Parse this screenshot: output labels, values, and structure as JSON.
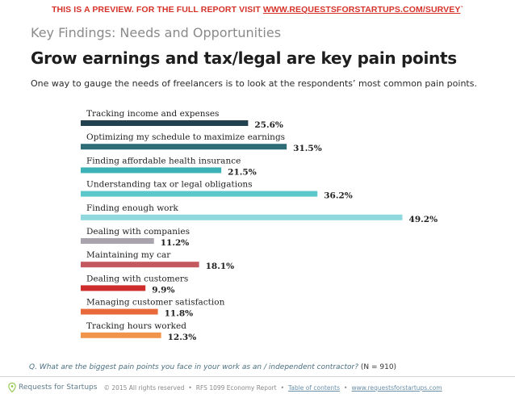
{
  "banner": {
    "prefix": "THIS IS A PREVIEW. FOR THE FULL REPORT VISIT ",
    "link": "WWW.REQUESTSFORSTARTUPS.COM/SURVEY",
    "suffix": "`"
  },
  "header": {
    "subtitle": "Key Findings: Needs and Opportunities",
    "title": "Grow earnings and tax/legal are key pain points",
    "intro": "One way to gauge the needs of freelancers is to look at the respondents’ most common pain points."
  },
  "chart_data": {
    "type": "bar",
    "orientation": "horizontal",
    "categories": [
      "Tracking income and expenses",
      "Optimizing my schedule to maximize earnings",
      "Finding affordable health insurance",
      "Understanding tax or legal obligations",
      "Finding enough work",
      "Dealing with companies",
      "Maintaining my car",
      "Dealing with customers",
      "Managing customer satisfaction",
      "Tracking hours worked"
    ],
    "values": [
      25.6,
      31.5,
      21.5,
      36.2,
      49.2,
      11.2,
      18.1,
      9.9,
      11.8,
      12.3
    ],
    "value_labels": [
      "25.6%",
      "31.5%",
      "21.5%",
      "36.2%",
      "49.2%",
      "11.2%",
      "18.1%",
      "9.9%",
      "11.8%",
      "12.3%"
    ],
    "colors": [
      "#22424f",
      "#2e6c78",
      "#3cb2b6",
      "#5ac7ca",
      "#8fd8dd",
      "#a8a3ad",
      "#c3585f",
      "#cf2d2b",
      "#e86a3a",
      "#f0944c"
    ],
    "unit": "%",
    "xlim": [
      0,
      50
    ]
  },
  "question": {
    "text": "Q. What are the biggest pain points you face in your work as an / independent contractor?",
    "n": "(N = 910)"
  },
  "footer": {
    "brand": "Requests for Startups",
    "copyright": "© 2015 All rights reserved",
    "report": "RFS 1099 Economy Report",
    "toc": "Table of contents",
    "url": "www.requestsforstartups.com",
    "separator": "•"
  }
}
